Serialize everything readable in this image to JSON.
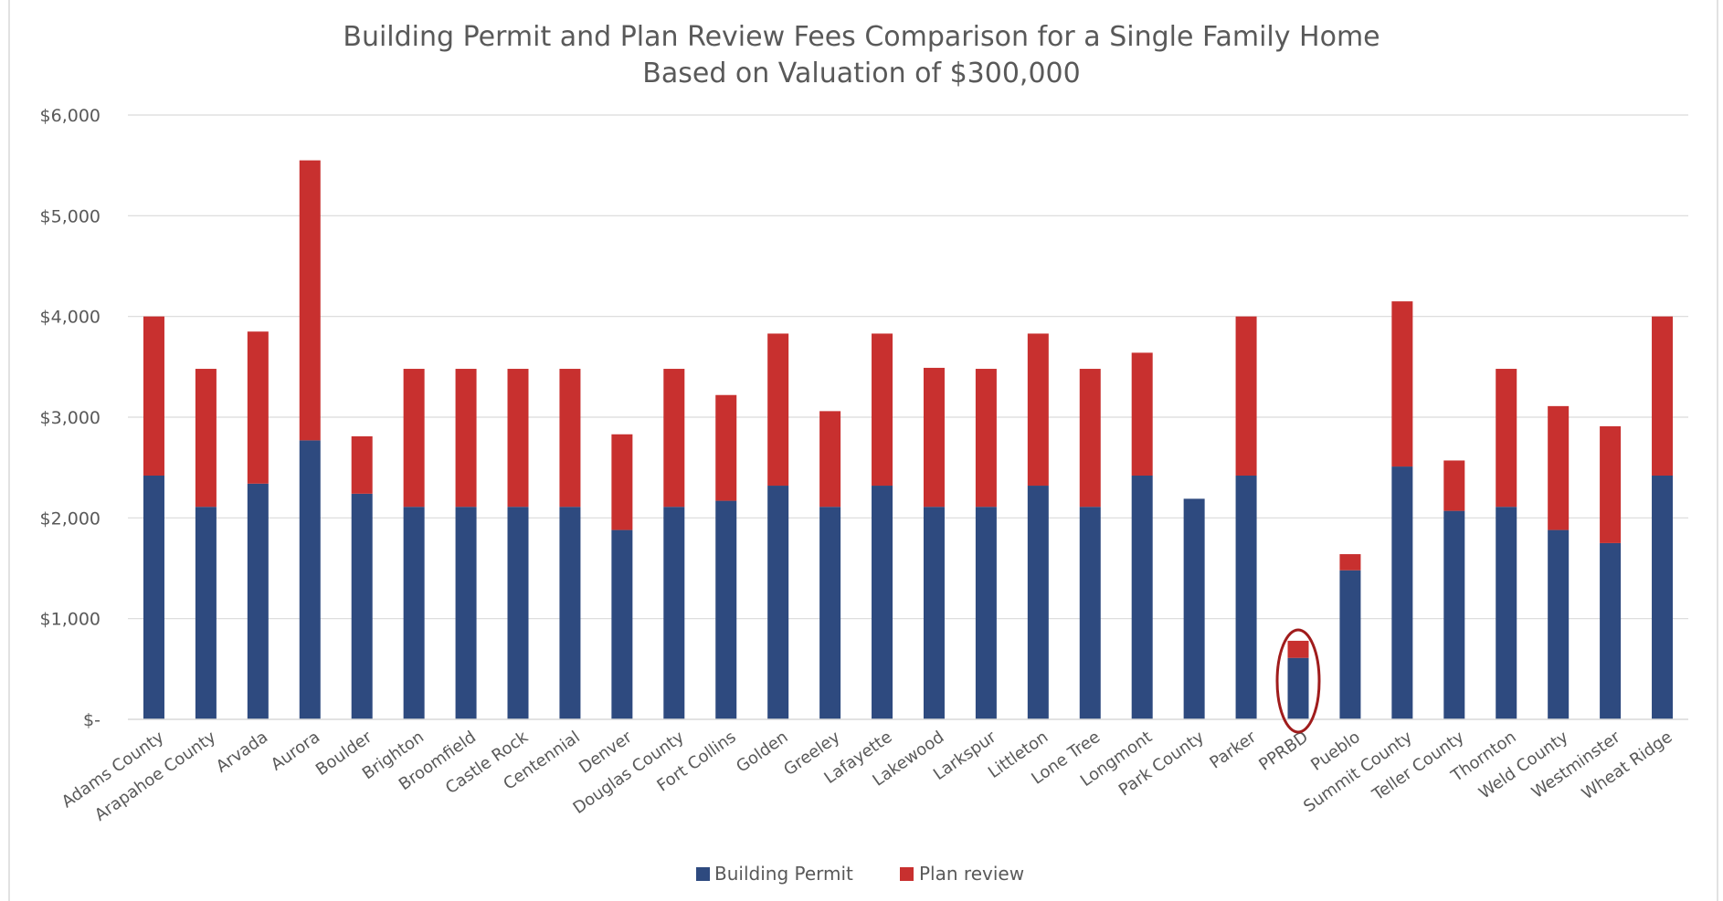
{
  "chart_data": {
    "type": "bar",
    "stacked": true,
    "title": "Building Permit and Plan Review Fees Comparison for a Single Family Home",
    "subtitle": "Based on Valuation of $300,000",
    "xlabel": "",
    "ylabel": "",
    "ylim": [
      0,
      6000
    ],
    "yticks": [
      0,
      1000,
      2000,
      3000,
      4000,
      5000,
      6000
    ],
    "ytick_labels": [
      "$-",
      "$1,000",
      "$2,000",
      "$3,000",
      "$4,000",
      "$5,000",
      "$6,000"
    ],
    "grid": true,
    "legend_position": "bottom",
    "categories": [
      "Adams County",
      "Arapahoe County",
      "Arvada",
      "Aurora",
      "Boulder",
      "Brighton",
      "Broomfield",
      "Castle Rock",
      "Centennial",
      "Denver",
      "Douglas County",
      "Fort Collins",
      "Golden",
      "Greeley",
      "Lafayette",
      "Lakewood",
      "Larkspur",
      "Littleton",
      "Lone Tree",
      "Longmont",
      "Park County",
      "Parker",
      "PPRBD",
      "Pueblo",
      "Summit County",
      "Teller County",
      "Thornton",
      "Weld County",
      "Westminster",
      "Wheat Ridge"
    ],
    "series": [
      {
        "name": "Building Permit",
        "color": "#2e4a7f",
        "values": [
          2420,
          2110,
          2340,
          2770,
          2240,
          2110,
          2110,
          2110,
          2110,
          1880,
          2110,
          2170,
          2320,
          2110,
          2320,
          2110,
          2110,
          2320,
          2110,
          2420,
          2190,
          2420,
          610,
          1480,
          2510,
          2070,
          2110,
          1880,
          1750,
          2420
        ]
      },
      {
        "name": "Plan review",
        "color": "#c8302f",
        "values": [
          1580,
          1370,
          1510,
          2780,
          570,
          1370,
          1370,
          1370,
          1370,
          950,
          1370,
          1050,
          1510,
          950,
          1510,
          1380,
          1370,
          1510,
          1370,
          1220,
          0,
          1580,
          170,
          160,
          1640,
          500,
          1370,
          1230,
          1160,
          1580
        ]
      }
    ],
    "annotations": [
      {
        "type": "ellipse-highlight",
        "category": "PPRBD",
        "color": "#a01c1c"
      }
    ]
  }
}
